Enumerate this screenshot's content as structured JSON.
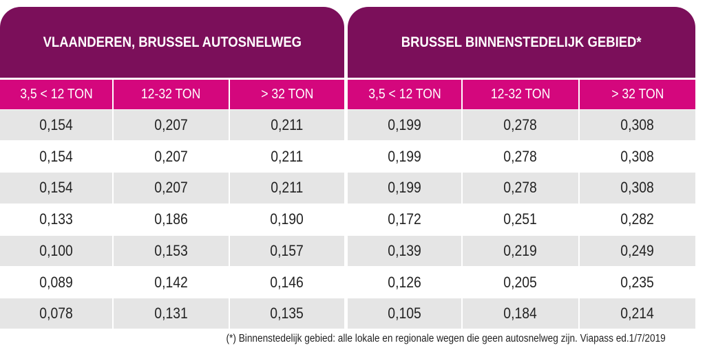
{
  "header": {
    "groups": [
      "VLAANDEREN, BRUSSEL AUTOSNELWEG",
      "BRUSSEL BINNENSTEDELIJK GEBIED*"
    ]
  },
  "table": {
    "columns": [
      "3,5 < 12 TON",
      "12-32 TON",
      "> 32 TON",
      "3,5 < 12 TON",
      "12-32 TON",
      "> 32 TON"
    ],
    "rows": [
      [
        "0,154",
        "0,207",
        "0,211",
        "0,199",
        "0,278",
        "0,308"
      ],
      [
        "0,154",
        "0,207",
        "0,211",
        "0,199",
        "0,278",
        "0,308"
      ],
      [
        "0,154",
        "0,207",
        "0,211",
        "0,199",
        "0,278",
        "0,308"
      ],
      [
        "0,133",
        "0,186",
        "0,190",
        "0,172",
        "0,251",
        "0,282"
      ],
      [
        "0,100",
        "0,153",
        "0,157",
        "0,139",
        "0,219",
        "0,249"
      ],
      [
        "0,089",
        "0,142",
        "0,146",
        "0,126",
        "0,205",
        "0,235"
      ],
      [
        "0,078",
        "0,131",
        "0,135",
        "0,105",
        "0,184",
        "0,214"
      ]
    ]
  },
  "footnote": "(*) Binnenstedelijk gebied: alle lokale en regionale wegen die geen autosnelweg zijn. Viapass ed.1/7/2019"
}
